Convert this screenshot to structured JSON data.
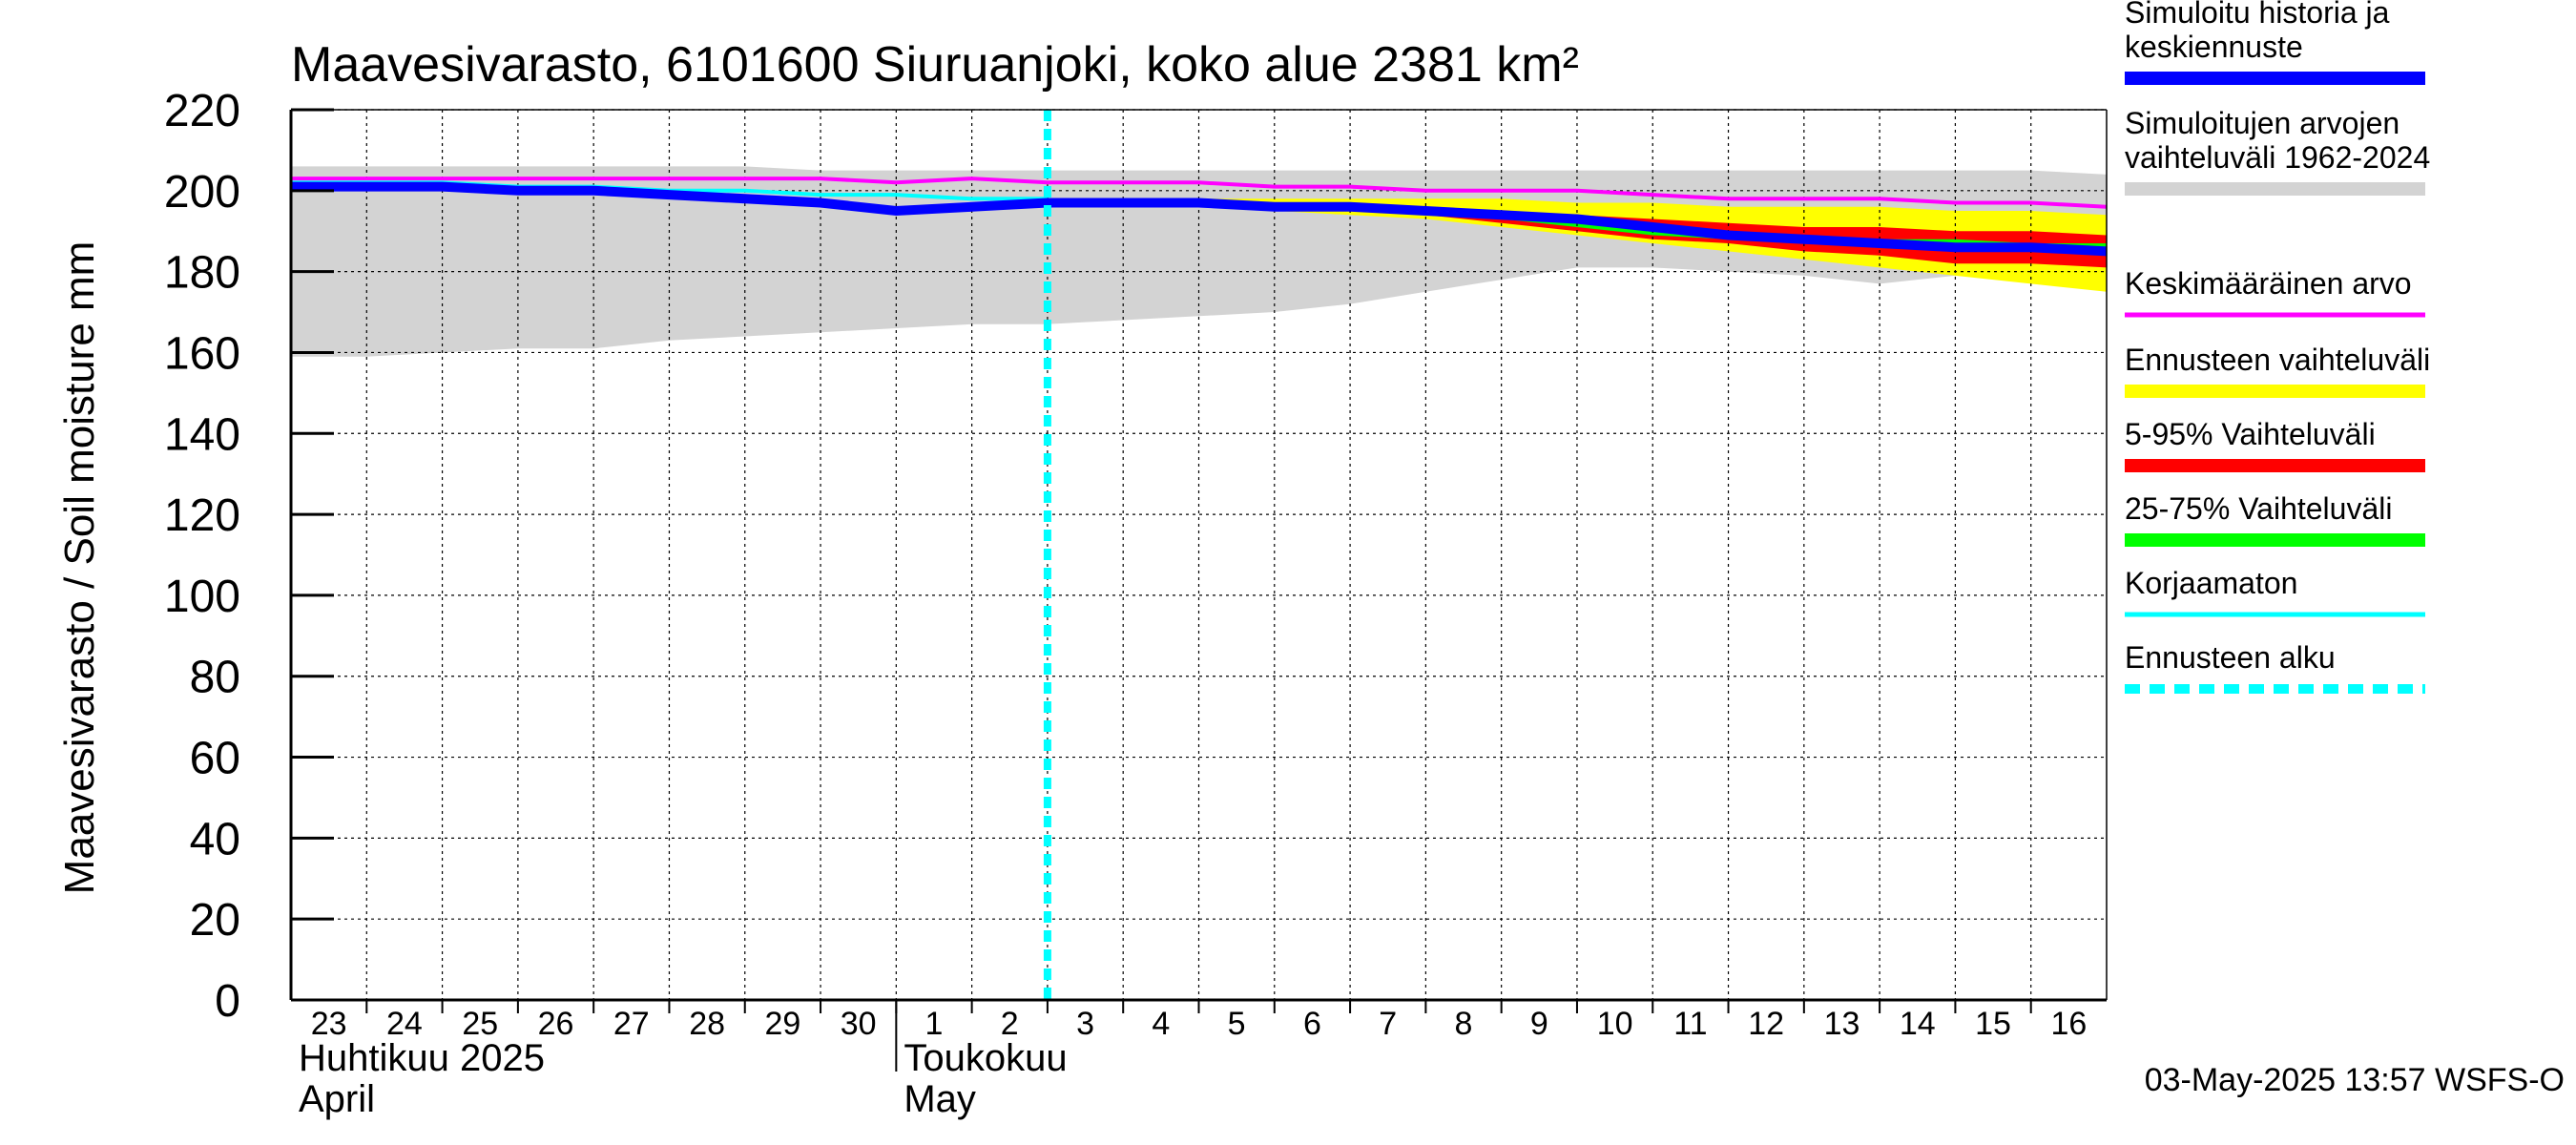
{
  "chart_data": {
    "type": "area",
    "title": "Maavesivarasto, 6101600 Siuruanjoki, koko alue 2381 km²",
    "ylabel": "Maavesivarasto / Soil moisture   mm",
    "ylim": [
      0,
      220
    ],
    "yticks": [
      0,
      20,
      40,
      60,
      80,
      100,
      120,
      140,
      160,
      180,
      200,
      220
    ],
    "grid": true,
    "legend_position": "right",
    "x_labels": [
      "23",
      "24",
      "25",
      "26",
      "27",
      "28",
      "29",
      "30",
      "1",
      "2",
      "3",
      "4",
      "5",
      "6",
      "7",
      "8",
      "9",
      "10",
      "11",
      "12",
      "13",
      "14",
      "15",
      "16"
    ],
    "month_labels": [
      {
        "line1": "Huhtikuu  2025",
        "line2": "April"
      },
      {
        "line1": "Toukokuu",
        "line2": "May"
      }
    ],
    "forecast_start_x": 10,
    "historical_range": {
      "x": [
        0,
        1,
        2,
        3,
        4,
        5,
        6,
        7,
        8,
        9,
        10,
        11,
        12,
        13,
        14,
        15,
        16,
        17,
        18,
        19,
        20,
        21,
        22,
        23,
        24
      ],
      "upper": [
        206,
        206,
        206,
        206,
        206,
        206,
        206,
        205,
        205,
        205,
        205,
        205,
        205,
        205,
        205,
        205,
        205,
        205,
        205,
        205,
        205,
        205,
        205,
        205,
        204
      ],
      "lower": [
        159,
        159,
        160,
        161,
        161,
        163,
        164,
        165,
        166,
        167,
        167,
        168,
        169,
        170,
        172,
        175,
        178,
        181,
        181,
        180,
        179,
        177,
        179,
        180,
        180
      ]
    },
    "mean": {
      "x": [
        0,
        1,
        2,
        3,
        4,
        5,
        6,
        7,
        8,
        9,
        10,
        11,
        12,
        13,
        14,
        15,
        16,
        17,
        18,
        19,
        20,
        21,
        22,
        23,
        24
      ],
      "values": [
        203,
        203,
        203,
        203,
        203,
        203,
        203,
        203,
        202,
        203,
        202,
        202,
        202,
        201,
        201,
        200,
        200,
        200,
        199,
        198,
        198,
        198,
        197,
        197,
        196
      ]
    },
    "uncorrected": {
      "x": [
        0,
        1,
        2,
        3,
        4,
        5,
        6,
        7,
        8,
        9,
        10
      ],
      "values": [
        202,
        202,
        202,
        201,
        201,
        200,
        200,
        199,
        199,
        198,
        198
      ]
    },
    "history_and_median": {
      "x": [
        0,
        1,
        2,
        3,
        4,
        5,
        6,
        7,
        8,
        9,
        10,
        11,
        12,
        13,
        14,
        15,
        16,
        17,
        18,
        19,
        20,
        21,
        22,
        23,
        24
      ],
      "values": [
        201,
        201,
        201,
        200,
        200,
        199,
        198,
        197,
        195,
        196,
        197,
        197,
        197,
        196,
        196,
        195,
        194,
        193,
        191,
        189,
        188,
        187,
        186,
        186,
        185
      ]
    },
    "forecast_range": {
      "x": [
        10,
        11,
        12,
        13,
        14,
        15,
        16,
        17,
        18,
        19,
        20,
        21,
        22,
        23,
        24
      ],
      "upper": [
        198,
        198,
        198,
        198,
        198,
        198,
        198,
        197,
        197,
        196,
        196,
        196,
        195,
        195,
        194
      ],
      "lower": [
        198,
        197,
        196,
        195,
        194,
        193,
        191,
        189,
        187,
        185,
        183,
        181,
        179,
        177,
        175
      ]
    },
    "p5_95": {
      "x": [
        10,
        11,
        12,
        13,
        14,
        15,
        16,
        17,
        18,
        19,
        20,
        21,
        22,
        23,
        24
      ],
      "upper": [
        198,
        198,
        197,
        197,
        197,
        196,
        195,
        194,
        193,
        192,
        191,
        191,
        190,
        190,
        189
      ],
      "lower": [
        198,
        197,
        197,
        196,
        195,
        194,
        192,
        190,
        188,
        187,
        185,
        184,
        182,
        182,
        181
      ]
    },
    "p25_75": {
      "x": [
        10,
        11,
        12,
        13,
        14,
        15,
        16,
        17,
        18,
        19,
        20,
        21,
        22,
        23,
        24
      ],
      "upper": [
        198,
        198,
        197,
        197,
        196,
        195,
        194,
        193,
        191,
        190,
        189,
        188,
        188,
        187,
        187
      ],
      "lower": [
        198,
        197,
        197,
        196,
        195,
        194,
        193,
        191,
        189,
        188,
        187,
        186,
        185,
        185,
        184
      ]
    },
    "legend": [
      {
        "label": "Simuloitu historia ja keskiennuste",
        "color": "#0000ff",
        "style": "solid"
      },
      {
        "label": "Simuloitujen arvojen vaihteluväli 1962-2024",
        "color": "#d3d3d3",
        "style": "solid"
      },
      {
        "label": "Keskimääräinen arvo",
        "color": "#ff00ff",
        "style": "solid"
      },
      {
        "label": "Ennusteen vaihteluväli",
        "color": "#ffff00",
        "style": "solid"
      },
      {
        "label": "5-95% Vaihteluväli",
        "color": "#ff0000",
        "style": "solid"
      },
      {
        "label": "25-75% Vaihteluväli",
        "color": "#00ff00",
        "style": "solid"
      },
      {
        "label": "Korjaamaton",
        "color": "#00ffff",
        "style": "solid"
      },
      {
        "label": "Ennusteen alku",
        "color": "#00ffff",
        "style": "dashed"
      }
    ],
    "footer": "03-May-2025 13:57 WSFS-O"
  }
}
